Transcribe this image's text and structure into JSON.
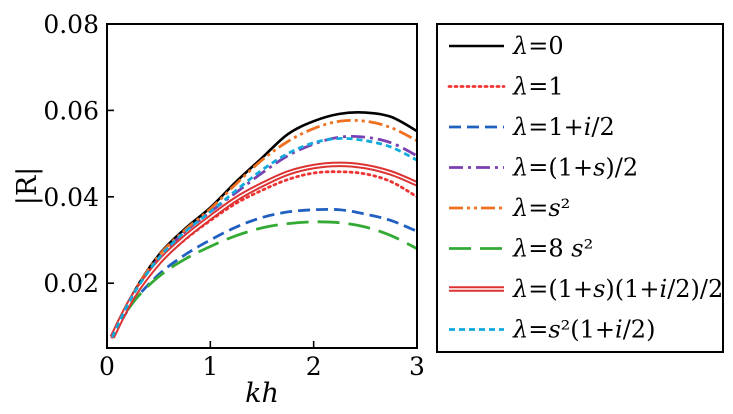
{
  "chart_data": {
    "type": "line",
    "xlabel": "kh",
    "ylabel": "|R|",
    "xlim": [
      0,
      3
    ],
    "ylim": [
      0.005,
      0.08
    ],
    "xticks": [
      {
        "value": 0,
        "label": "0"
      },
      {
        "value": 1,
        "label": "1"
      },
      {
        "value": 2,
        "label": "2"
      },
      {
        "value": 3,
        "label": "3"
      }
    ],
    "yticks": [
      {
        "value": 0.02,
        "label": "0.02"
      },
      {
        "value": 0.04,
        "label": "0.04"
      },
      {
        "value": 0.06,
        "label": "0.06"
      },
      {
        "value": 0.08,
        "label": "0.08"
      }
    ],
    "legend_position": "outside-right",
    "x": [
      0.05,
      0.25,
      0.5,
      0.75,
      1.0,
      1.25,
      1.5,
      1.75,
      2.0,
      2.25,
      2.5,
      2.75,
      3.0
    ],
    "series": [
      {
        "name": "λ=0",
        "label_parts": [
          {
            "t": "λ",
            "i": true
          },
          {
            "t": "=0",
            "i": false
          }
        ],
        "color": "#000000",
        "style": "solid",
        "values": [
          0.0075,
          0.0175,
          0.0265,
          0.0325,
          0.0375,
          0.0435,
          0.049,
          0.0545,
          0.0575,
          0.0592,
          0.0595,
          0.0585,
          0.0552
        ]
      },
      {
        "name": "λ=1",
        "label_parts": [
          {
            "t": "λ",
            "i": true
          },
          {
            "t": "=1",
            "i": false
          }
        ],
        "color": "#ee3333",
        "style": "dotted",
        "values": [
          0.0075,
          0.0168,
          0.0245,
          0.03,
          0.0345,
          0.0385,
          0.0415,
          0.044,
          0.0455,
          0.0458,
          0.0453,
          0.0435,
          0.04
        ]
      },
      {
        "name": "λ=1+i/2",
        "label_parts": [
          {
            "t": "λ",
            "i": true
          },
          {
            "t": "=1+",
            "i": false
          },
          {
            "t": "i",
            "i": true
          },
          {
            "t": "/2",
            "i": false
          }
        ],
        "color": "#2060c0",
        "style": "dashed",
        "values": [
          0.0075,
          0.0155,
          0.022,
          0.0265,
          0.03,
          0.033,
          0.0352,
          0.0365,
          0.037,
          0.037,
          0.036,
          0.0345,
          0.032
        ]
      },
      {
        "name": "λ=(1+s)/2",
        "label_parts": [
          {
            "t": "λ",
            "i": true
          },
          {
            "t": "=(1+",
            "i": false
          },
          {
            "t": "s",
            "i": true
          },
          {
            "t": ")/2",
            "i": false
          }
        ],
        "color": "#7a3fb0",
        "style": "dashdot",
        "values": [
          0.0075,
          0.0172,
          0.0258,
          0.0318,
          0.0365,
          0.041,
          0.0455,
          0.0495,
          0.0522,
          0.0538,
          0.0538,
          0.0525,
          0.0495
        ]
      },
      {
        "name": "λ=s²",
        "label_parts": [
          {
            "t": "λ",
            "i": true
          },
          {
            "t": "=",
            "i": false
          },
          {
            "t": "s",
            "i": true
          },
          {
            "t": "²",
            "i": false
          }
        ],
        "color": "#f07020",
        "style": "dashdotdot",
        "values": [
          0.0075,
          0.0175,
          0.0263,
          0.0322,
          0.0372,
          0.043,
          0.0485,
          0.0528,
          0.0558,
          0.0575,
          0.0575,
          0.056,
          0.053
        ]
      },
      {
        "name": "λ=8 s²",
        "label_parts": [
          {
            "t": "λ",
            "i": true
          },
          {
            "t": "=8 ",
            "i": false
          },
          {
            "t": "s",
            "i": true
          },
          {
            "t": "²",
            "i": false
          }
        ],
        "color": "#33aa33",
        "style": "longdash",
        "values": [
          0.0075,
          0.0155,
          0.0215,
          0.0255,
          0.0285,
          0.031,
          0.0328,
          0.0338,
          0.0342,
          0.034,
          0.033,
          0.031,
          0.028
        ]
      },
      {
        "name": "λ=(1+s)(1+i/2)/2",
        "label_parts": [
          {
            "t": "λ",
            "i": true
          },
          {
            "t": "=(1+",
            "i": false
          },
          {
            "t": "s",
            "i": true
          },
          {
            "t": ")(1+",
            "i": false
          },
          {
            "t": "i",
            "i": true
          },
          {
            "t": "/2)/2",
            "i": false
          }
        ],
        "color": "#dd3333",
        "style": "double",
        "values": [
          0.0075,
          0.0168,
          0.0248,
          0.0305,
          0.0352,
          0.0395,
          0.0428,
          0.0455,
          0.047,
          0.0475,
          0.047,
          0.0455,
          0.043
        ]
      },
      {
        "name": "λ=s²(1+i/2)",
        "label_parts": [
          {
            "t": "λ",
            "i": true
          },
          {
            "t": "=",
            "i": false
          },
          {
            "t": "s",
            "i": true
          },
          {
            "t": "²",
            "i": false
          },
          {
            "t": "(1+",
            "i": false
          },
          {
            "t": "i",
            "i": true
          },
          {
            "t": "/2)",
            "i": false
          }
        ],
        "color": "#11aadd",
        "style": "shortdash",
        "values": [
          0.0075,
          0.0172,
          0.0258,
          0.0318,
          0.0365,
          0.0415,
          0.0462,
          0.05,
          0.0525,
          0.0535,
          0.053,
          0.0515,
          0.0485
        ]
      }
    ]
  }
}
